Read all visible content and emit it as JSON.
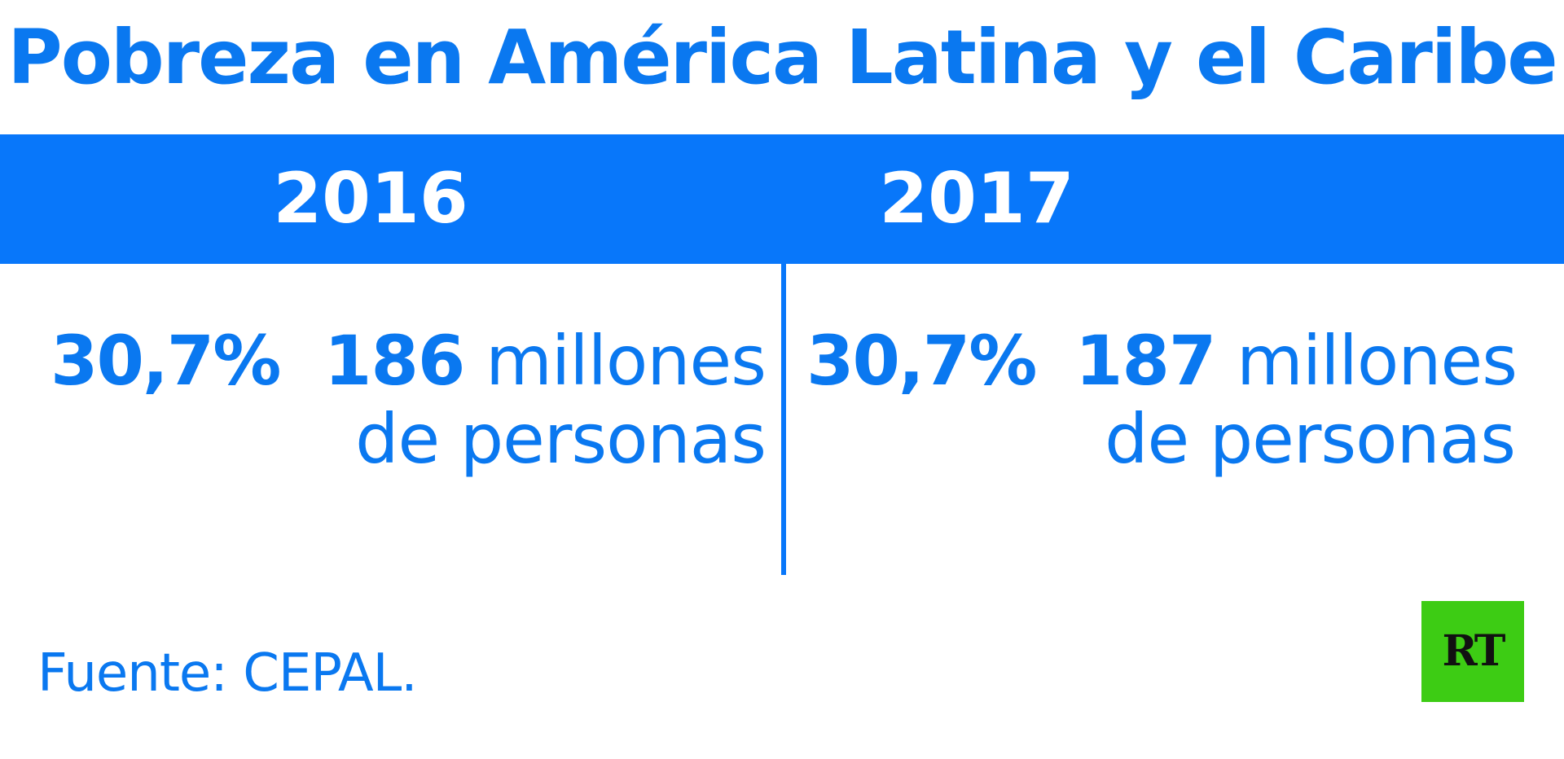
{
  "title": "Pobreza en América Latina y el Caribe",
  "columns": [
    {
      "year": "2016",
      "percent": "30,7%",
      "people_number": "186",
      "people_unit": "millones",
      "people_rest": "de personas"
    },
    {
      "year": "2017",
      "percent": "30,7%",
      "people_number": "187",
      "people_unit": "millones",
      "people_rest": "de personas"
    }
  ],
  "source": "Fuente: CEPAL.",
  "logo": {
    "text": "RT",
    "color": "#3dcc14"
  },
  "colors": {
    "accent": "#0877fa",
    "text": "#0a78f0",
    "background": "#ffffff"
  }
}
